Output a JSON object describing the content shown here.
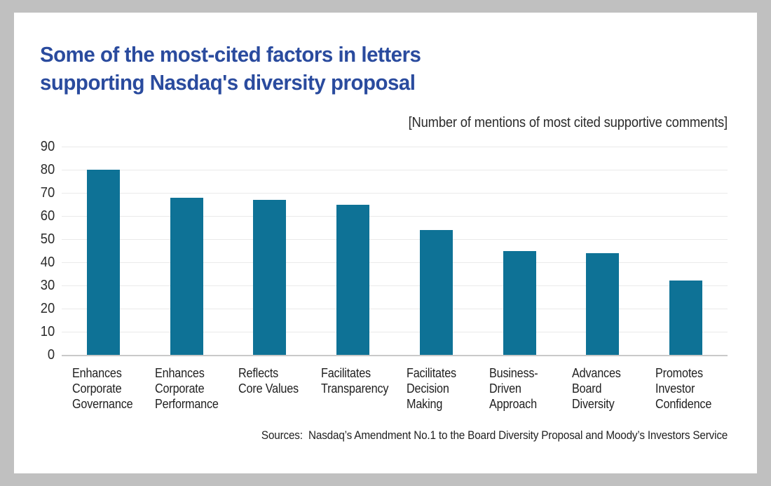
{
  "frame": {
    "background_color": "#c0c0c0",
    "panel_color": "#ffffff"
  },
  "header": {
    "title_line1": "Some of the most-cited factors in letters",
    "title_line2": "supporting Nasdaq's diversity proposal",
    "title_color": "#2a4b9e"
  },
  "footer": {
    "sources": "Sources:  Nasdaq’s Amendment No.1 to the Board Diversity Proposal and Moody’s Investors Service"
  },
  "chart_data": {
    "type": "bar",
    "title": "Some of the most-cited factors in letters supporting Nasdaq's diversity proposal",
    "subtitle": "[Number of mentions of most cited supportive comments]",
    "categories": [
      "Enhances\nCorporate\nGovernance",
      "Enhances\nCorporate\nPerformance",
      "Reflects\nCore Values",
      "Facilitates\nTransparency",
      "Facilitates\nDecision\nMaking",
      "Business-\nDriven\nApproach",
      "Advances\nBoard\nDiversity",
      "Promotes\nInvestor\nConfidence"
    ],
    "values": [
      80,
      68,
      67,
      65,
      54,
      45,
      44,
      32
    ],
    "yticks": [
      0,
      10,
      20,
      30,
      40,
      50,
      60,
      70,
      80,
      90
    ],
    "ylim": [
      0,
      90
    ],
    "xlabel": "",
    "ylabel": "",
    "bar_color": "#0e7296",
    "gridline_color": "#eaeaea",
    "axis_line_color": "#c9c9c9",
    "grid": true,
    "legend_position": "none"
  }
}
